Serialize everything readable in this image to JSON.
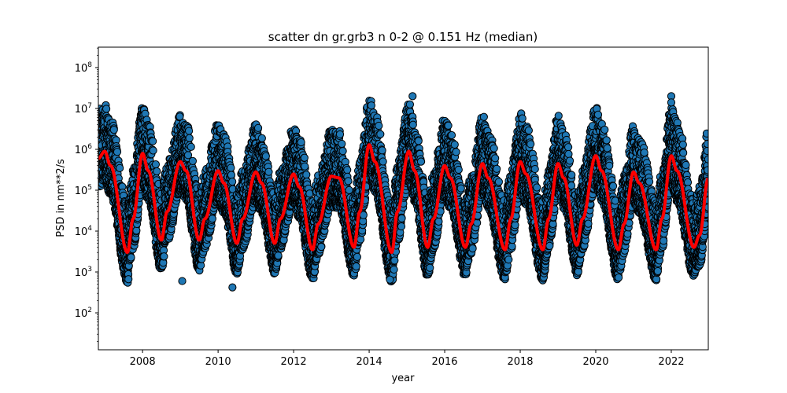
{
  "chart_data": {
    "type": "scatter",
    "title": "scatter dn gr.grb3 n 0-2 @ 0.151 Hz (median)",
    "xlabel": "year",
    "ylabel": "PSD in nm**2/s",
    "yscale": "log",
    "xlim": [
      2006.83,
      2022.98
    ],
    "ylim": [
      12.5,
      316000000
    ],
    "xticks": [
      2008,
      2010,
      2012,
      2014,
      2016,
      2018,
      2020,
      2022
    ],
    "xtick_labels": [
      "2008",
      "2010",
      "2012",
      "2014",
      "2016",
      "2018",
      "2020",
      "2022"
    ],
    "yticks": [
      100,
      1000,
      10000,
      100000,
      1000000,
      10000000,
      100000000
    ],
    "ytick_labels": [
      {
        "base": "10",
        "exp": "2"
      },
      {
        "base": "10",
        "exp": "3"
      },
      {
        "base": "10",
        "exp": "4"
      },
      {
        "base": "10",
        "exp": "5"
      },
      {
        "base": "10",
        "exp": "6"
      },
      {
        "base": "10",
        "exp": "7"
      },
      {
        "base": "10",
        "exp": "8"
      }
    ],
    "grid": false,
    "colors": {
      "scatter_fill": "#1f77b4",
      "scatter_edge": "#000000",
      "median": "#ff0000"
    },
    "median": {
      "name": "median",
      "x": [
        2006.83,
        2007.0,
        2007.15,
        2007.6,
        2007.75,
        2008.0,
        2008.15,
        2008.5,
        2008.65,
        2009.0,
        2009.15,
        2009.5,
        2009.65,
        2010.0,
        2010.15,
        2010.5,
        2010.65,
        2011.0,
        2011.15,
        2011.5,
        2011.65,
        2012.0,
        2012.15,
        2012.5,
        2012.65,
        2013.0,
        2013.2,
        2013.6,
        2013.75,
        2014.0,
        2014.15,
        2014.6,
        2014.75,
        2015.05,
        2015.2,
        2015.55,
        2015.7,
        2016.0,
        2016.15,
        2016.55,
        2016.7,
        2017.0,
        2017.15,
        2017.6,
        2017.75,
        2018.0,
        2018.15,
        2018.6,
        2018.75,
        2019.0,
        2019.15,
        2019.5,
        2019.65,
        2020.0,
        2020.15,
        2020.6,
        2020.75,
        2021.0,
        2021.15,
        2021.6,
        2021.75,
        2022.0,
        2022.15,
        2022.6,
        2022.75,
        2022.98
      ],
      "y": [
        600000,
        900000,
        400000,
        3000,
        20000,
        800000,
        300000,
        6000,
        30000,
        500000,
        300000,
        6000,
        20000,
        300000,
        150000,
        5000,
        20000,
        280000,
        150000,
        5000,
        20000,
        250000,
        120000,
        3500,
        15000,
        220000,
        200000,
        4000,
        30000,
        1300000,
        500000,
        3000,
        30000,
        900000,
        300000,
        4000,
        20000,
        400000,
        200000,
        4000,
        15000,
        450000,
        200000,
        3500,
        20000,
        500000,
        250000,
        3500,
        20000,
        450000,
        200000,
        4500,
        20000,
        700000,
        300000,
        3500,
        15000,
        280000,
        150000,
        3500,
        20000,
        700000,
        300000,
        4000,
        8000,
        200000
      ]
    },
    "scatter_outliers": {
      "x": [
        2009.05,
        2010.38,
        2015.15,
        2022.0,
        2022.0,
        2014.55
      ],
      "y": [
        600,
        420,
        20000000,
        20000000,
        14000000,
        650
      ]
    },
    "scatter_spread_decades": {
      "above": 1.2,
      "below": 0.75
    }
  }
}
